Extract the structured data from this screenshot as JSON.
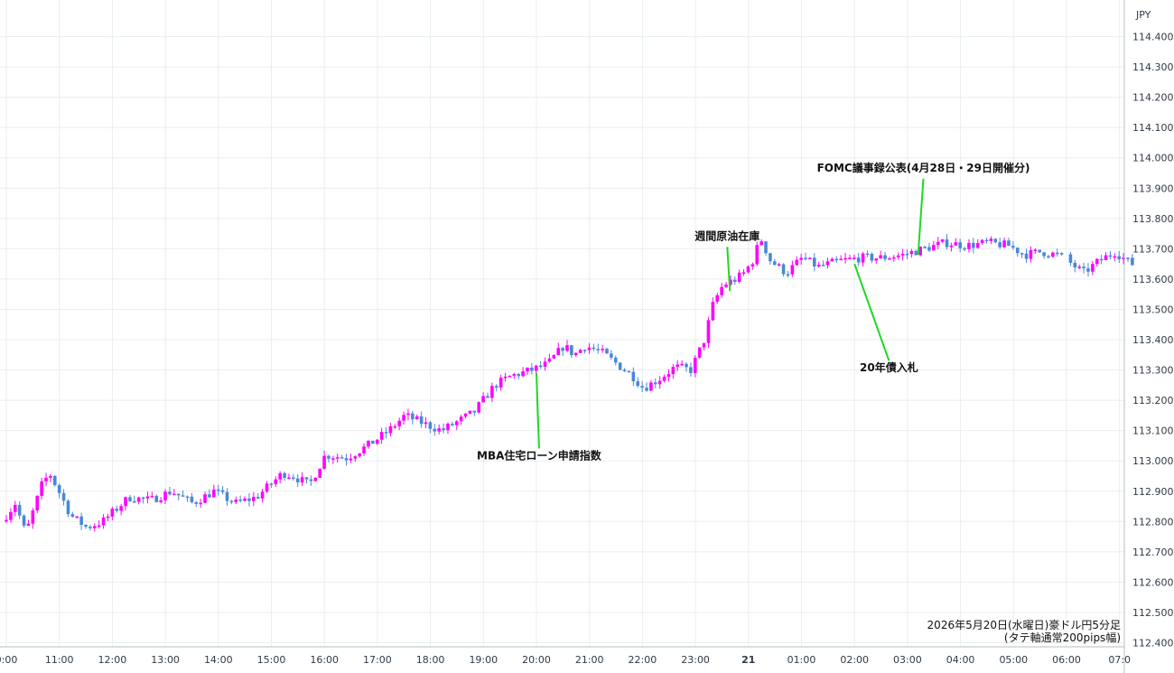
{
  "colors": {
    "up": "#ff00ff",
    "down": "#4a88d6",
    "annotation_line": "#22d822",
    "grid": "#e8eef2",
    "axis_line": "#b7bfc6"
  },
  "chart_data": {
    "type": "candlestick",
    "currency_label": "JPY",
    "ylim": [
      112.38,
      114.48
    ],
    "yticks": [
      "114.400",
      "114.300",
      "114.200",
      "114.100",
      "114.000",
      "113.900",
      "113.800",
      "113.700",
      "113.600",
      "113.500",
      "113.400",
      "113.300",
      "113.200",
      "113.100",
      "113.000",
      "112.900",
      "112.800",
      "112.700",
      "112.600",
      "112.500",
      "112.400"
    ],
    "xticks": [
      {
        "label": "0:00",
        "bold": false
      },
      {
        "label": "11:00",
        "bold": false
      },
      {
        "label": "12:00",
        "bold": false
      },
      {
        "label": "13:00",
        "bold": false
      },
      {
        "label": "14:00",
        "bold": false
      },
      {
        "label": "15:00",
        "bold": false
      },
      {
        "label": "16:00",
        "bold": false
      },
      {
        "label": "17:00",
        "bold": false
      },
      {
        "label": "18:00",
        "bold": false
      },
      {
        "label": "19:00",
        "bold": false
      },
      {
        "label": "20:00",
        "bold": false
      },
      {
        "label": "21:00",
        "bold": false
      },
      {
        "label": "22:00",
        "bold": false
      },
      {
        "label": "23:00",
        "bold": false
      },
      {
        "label": "21",
        "bold": true
      },
      {
        "label": "01:00",
        "bold": false
      },
      {
        "label": "02:00",
        "bold": false
      },
      {
        "label": "03:00",
        "bold": false
      },
      {
        "label": "04:00",
        "bold": false
      },
      {
        "label": "05:00",
        "bold": false
      },
      {
        "label": "06:00",
        "bold": false
      },
      {
        "label": "07:0",
        "bold": false
      }
    ],
    "anchors": [
      [
        10.0,
        112.8
      ],
      [
        10.25,
        112.86
      ],
      [
        10.45,
        112.76
      ],
      [
        10.75,
        112.92
      ],
      [
        10.9,
        112.96
      ],
      [
        11.3,
        112.82
      ],
      [
        11.6,
        112.78
      ],
      [
        11.9,
        112.8
      ],
      [
        12.4,
        112.88
      ],
      [
        12.8,
        112.87
      ],
      [
        13.2,
        112.9
      ],
      [
        13.6,
        112.86
      ],
      [
        14.0,
        112.9
      ],
      [
        14.4,
        112.86
      ],
      [
        14.8,
        112.88
      ],
      [
        15.3,
        112.96
      ],
      [
        15.5,
        112.95
      ],
      [
        15.8,
        112.92
      ],
      [
        16.1,
        113.02
      ],
      [
        16.5,
        113.01
      ],
      [
        16.9,
        113.05
      ],
      [
        17.3,
        113.1
      ],
      [
        17.6,
        113.15
      ],
      [
        18.0,
        113.12
      ],
      [
        18.3,
        113.1
      ],
      [
        18.6,
        113.13
      ],
      [
        18.9,
        113.16
      ],
      [
        19.3,
        113.25
      ],
      [
        19.6,
        113.28
      ],
      [
        20.0,
        113.3
      ],
      [
        20.3,
        113.32
      ],
      [
        20.6,
        113.38
      ],
      [
        20.8,
        113.35
      ],
      [
        21.0,
        113.38
      ],
      [
        21.3,
        113.36
      ],
      [
        21.6,
        113.32
      ],
      [
        21.9,
        113.28
      ],
      [
        22.1,
        113.24
      ],
      [
        22.4,
        113.27
      ],
      [
        22.7,
        113.31
      ],
      [
        23.0,
        113.3
      ],
      [
        23.25,
        113.4
      ],
      [
        23.42,
        113.52
      ],
      [
        23.6,
        113.58
      ],
      [
        23.85,
        113.6
      ],
      [
        24.0,
        113.62
      ],
      [
        24.2,
        113.67
      ],
      [
        24.3,
        113.74
      ],
      [
        24.5,
        113.66
      ],
      [
        24.8,
        113.62
      ],
      [
        25.1,
        113.67
      ],
      [
        25.4,
        113.64
      ],
      [
        25.8,
        113.66
      ],
      [
        26.2,
        113.67
      ],
      [
        26.6,
        113.67
      ],
      [
        27.0,
        113.68
      ],
      [
        27.4,
        113.7
      ],
      [
        27.8,
        113.72
      ],
      [
        28.2,
        113.71
      ],
      [
        28.6,
        113.72
      ],
      [
        29.0,
        113.71
      ],
      [
        29.3,
        113.68
      ],
      [
        29.6,
        113.69
      ],
      [
        29.9,
        113.68
      ],
      [
        30.1,
        113.66
      ],
      [
        30.4,
        113.62
      ],
      [
        30.7,
        113.66
      ],
      [
        31.0,
        113.69
      ],
      [
        31.3,
        113.65
      ]
    ],
    "gaps": [
      [
        29.95,
        30.05
      ]
    ],
    "candle_interval_hours": 0.0833,
    "annotations": [
      {
        "text": "MBA住宅ローン申請指数",
        "time": 20.0,
        "price": 113.29,
        "text_time": 20.05,
        "text_price": 113.005
      },
      {
        "text": "週間原油在庫",
        "time": 23.65,
        "price": 113.56,
        "text_time": 23.6,
        "text_price": 113.73
      },
      {
        "text": "FOMC議事録公表(4月28日・29日開催分)",
        "time": 27.2,
        "price": 113.68,
        "text_time": 27.3,
        "text_price": 113.955
      },
      {
        "text": "20年債入札",
        "time": 26.0,
        "price": 113.65,
        "text_time": 26.65,
        "text_price": 113.295
      }
    ],
    "info_line1": "2026年5月20日(水曜日)豪ドル円5分足",
    "info_line2": "(タテ軸通常200pips幅)"
  }
}
